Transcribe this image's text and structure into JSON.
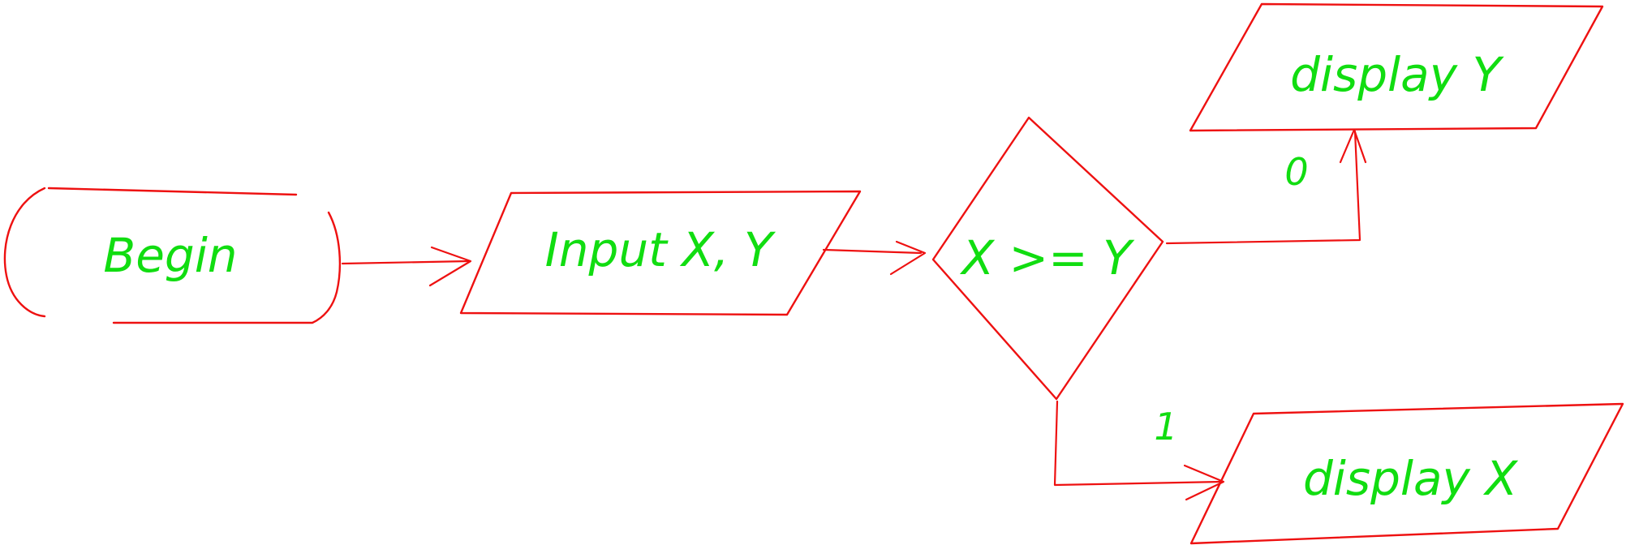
{
  "colors": {
    "stroke": "#ee1111",
    "text": "#11dd11"
  },
  "nodes": {
    "begin": {
      "shape": "terminator",
      "label": "Begin"
    },
    "input": {
      "shape": "parallelogram",
      "label": "Input X, Y"
    },
    "decision": {
      "shape": "diamond",
      "label": "X >= Y"
    },
    "display_y": {
      "shape": "parallelogram",
      "label": "display Y"
    },
    "display_x": {
      "shape": "parallelogram",
      "label": "display X"
    }
  },
  "edges": [
    {
      "from": "begin",
      "to": "input",
      "label": ""
    },
    {
      "from": "input",
      "to": "decision",
      "label": ""
    },
    {
      "from": "decision",
      "to": "display_y",
      "label": "0"
    },
    {
      "from": "decision",
      "to": "display_x",
      "label": "1"
    }
  ]
}
